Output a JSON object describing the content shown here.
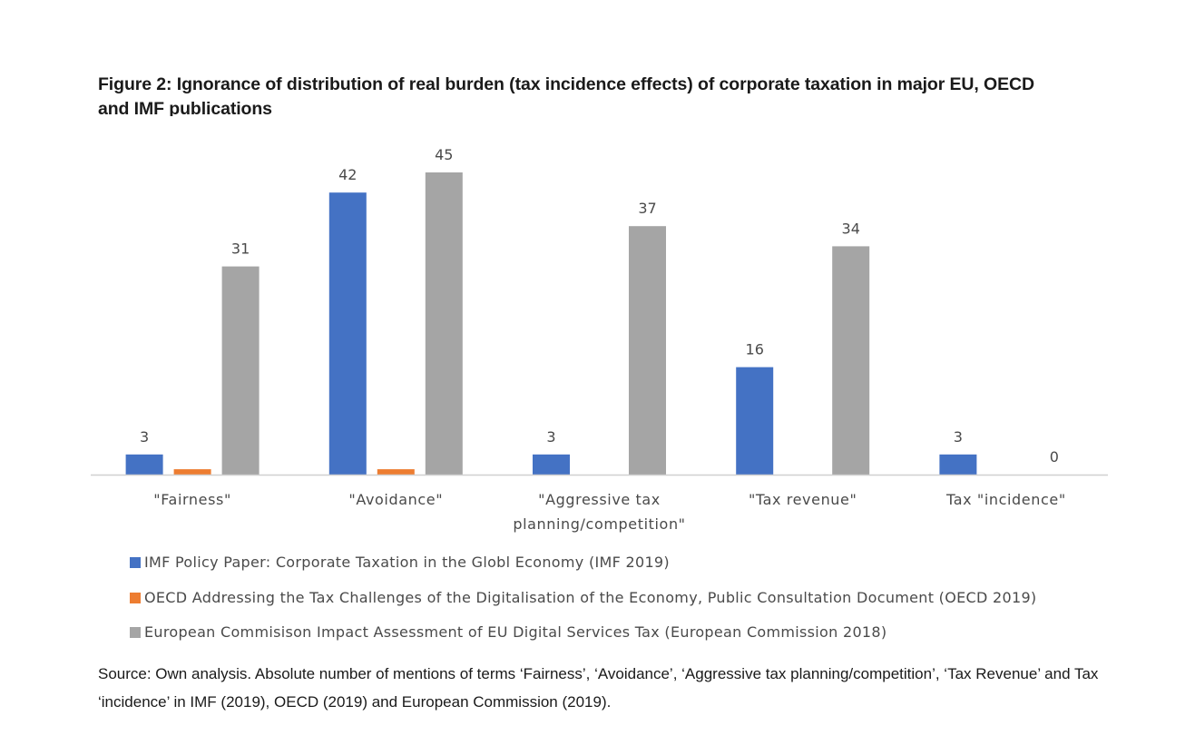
{
  "figure": {
    "title": "Figure 2: Ignorance of distribution of real burden (tax incidence effects) of corporate taxation in major EU, OECD and IMF publications",
    "source": "Source: Own analysis. Absolute number of mentions of terms ‘Fairness’, ‘Avoidance’, ‘Aggressive tax planning/competition’, ‘Tax Revenue’ and Tax ‘incidence’ in IMF (2019), OECD (2019) and European Commission (2019)."
  },
  "chart_data": {
    "type": "bar",
    "title": "Figure 2: Ignorance of distribution of real burden (tax incidence effects) of corporate taxation in major EU, OECD and IMF publications",
    "xlabel": "",
    "ylabel": "",
    "ylim": [
      0,
      45
    ],
    "grid": false,
    "legend_position": "bottom",
    "categories": [
      "\"Fairness\"",
      "\"Avoidance\"",
      "\"Aggressive tax planning/competition\"",
      "\"Tax revenue\"",
      "Tax \"incidence\""
    ],
    "category_lines": [
      [
        "\"Fairness\""
      ],
      [
        "\"Avoidance\""
      ],
      [
        "\"Aggressive tax",
        "planning/competition\""
      ],
      [
        "\"Tax revenue\""
      ],
      [
        "Tax \"incidence\""
      ]
    ],
    "series": [
      {
        "name": "IMF Policy Paper: Corporate Taxation in the Globl Economy (IMF 2019)",
        "color": "#4472c4",
        "values": [
          3,
          42,
          3,
          16,
          3
        ],
        "labels": [
          "3",
          "42",
          "3",
          "16",
          "3"
        ]
      },
      {
        "name": "OECD Addressing the Tax Challenges of the Digitalisation of the Economy, Public Consultation Document (OECD 2019)",
        "color": "#ed7d31",
        "values": [
          0.8,
          0.8,
          0,
          0,
          0
        ],
        "labels": [
          null,
          null,
          null,
          null,
          null
        ]
      },
      {
        "name": "European Commisison Impact Assessment of EU Digital Services Tax (European Commission 2018)",
        "color": "#a5a5a5",
        "values": [
          31,
          45,
          37,
          34,
          0
        ],
        "labels": [
          "31",
          "45",
          "37",
          "34",
          "0"
        ]
      }
    ]
  }
}
